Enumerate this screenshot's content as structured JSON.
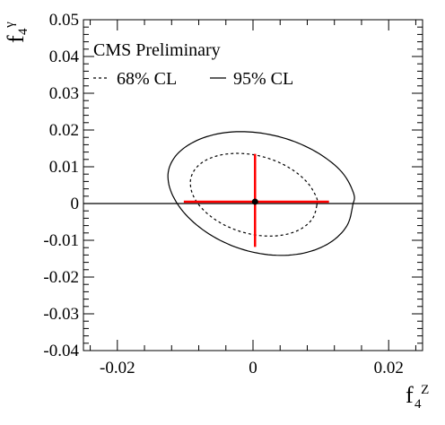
{
  "chart_data": {
    "type": "scatter",
    "title": "",
    "xlabel": {
      "main": "f",
      "sub": "4",
      "sup": "Z"
    },
    "ylabel": {
      "main": "f",
      "sub": "4",
      "sup": "γ"
    },
    "xlim": [
      -0.025,
      0.025
    ],
    "ylim": [
      -0.04,
      0.05
    ],
    "x_ticks": [
      {
        "value": -0.02,
        "label": "-0.02"
      },
      {
        "value": 0,
        "label": "0"
      },
      {
        "value": 0.02,
        "label": "0.02"
      }
    ],
    "y_ticks": [
      {
        "value": 0.05,
        "label": "0.05"
      },
      {
        "value": 0.04,
        "label": "0.04"
      },
      {
        "value": 0.03,
        "label": "0.03"
      },
      {
        "value": 0.02,
        "label": "0.02"
      },
      {
        "value": 0.01,
        "label": "0.01"
      },
      {
        "value": 0,
        "label": "0"
      },
      {
        "value": -0.01,
        "label": "-0.01"
      },
      {
        "value": -0.02,
        "label": "-0.02"
      },
      {
        "value": -0.03,
        "label": "-0.03"
      },
      {
        "value": -0.04,
        "label": "-0.04"
      }
    ],
    "annotation": "CMS Preliminary",
    "legend": [
      {
        "label": "68% CL",
        "style": "dashed"
      },
      {
        "label": "95% CL",
        "style": "solid"
      }
    ],
    "legend_position": "top-left",
    "contours": [
      {
        "cl": "68% CL",
        "style": "dashed",
        "points": [
          [
            0.0094,
            -0.0005
          ],
          [
            0.0088,
            -0.00403
          ],
          [
            0.00711,
            -0.00686
          ],
          [
            0.00452,
            -0.00853
          ],
          [
            0.00136,
            -0.00878
          ],
          [
            -0.00196,
            -0.00755
          ],
          [
            -0.00503,
            -0.00501
          ],
          [
            -0.00745,
            -0.00149
          ],
          [
            -0.0089,
            0.0025
          ],
          [
            -0.0092,
            0.0065
          ],
          [
            -0.0083,
            0.00988
          ],
          [
            -0.00633,
            0.01232
          ],
          [
            -0.00356,
            0.01354
          ],
          [
            -0.00036,
            0.0134
          ],
          [
            0.00288,
            0.0119
          ],
          [
            0.0058,
            0.0092
          ],
          [
            0.00807,
            0.00559
          ],
          [
            0.00938,
            0.00155
          ],
          [
            0.0094,
            -0.0005
          ]
        ]
      },
      {
        "cl": "95% CL",
        "style": "solid",
        "points": [
          [
            0.0147,
            -0.0005
          ],
          [
            0.01383,
            -0.0061
          ],
          [
            0.01131,
            -0.01069
          ],
          [
            0.00748,
            -0.01348
          ],
          [
            0.00286,
            -0.01402
          ],
          [
            -0.00198,
            -0.01222
          ],
          [
            -0.00643,
            -0.00834
          ],
          [
            -0.00992,
            -0.00301
          ],
          [
            -0.01201,
            0.0029
          ],
          [
            -0.0125,
            0.0085
          ],
          [
            -0.0112,
            0.01338
          ],
          [
            -0.00829,
            0.01715
          ],
          [
            -0.00419,
            0.01928
          ],
          [
            0.00058,
            0.0193
          ],
          [
            0.00541,
            0.01732
          ],
          [
            0.00976,
            0.01355
          ],
          [
            0.01315,
            0.00844
          ],
          [
            0.01485,
            0.00267
          ],
          [
            0.0147,
            -0.0005
          ]
        ]
      }
    ],
    "best_fit": {
      "x": 0.0003,
      "y": 0.0005
    },
    "error_bars": {
      "x": [
        -0.0102,
        0.0112
      ],
      "y": [
        -0.0118,
        0.0135
      ]
    },
    "zero_line_y": 0,
    "colors": {
      "error_bars": "#ff0000",
      "contours": "#000000",
      "best_fit": "#000000"
    },
    "grid": false
  }
}
